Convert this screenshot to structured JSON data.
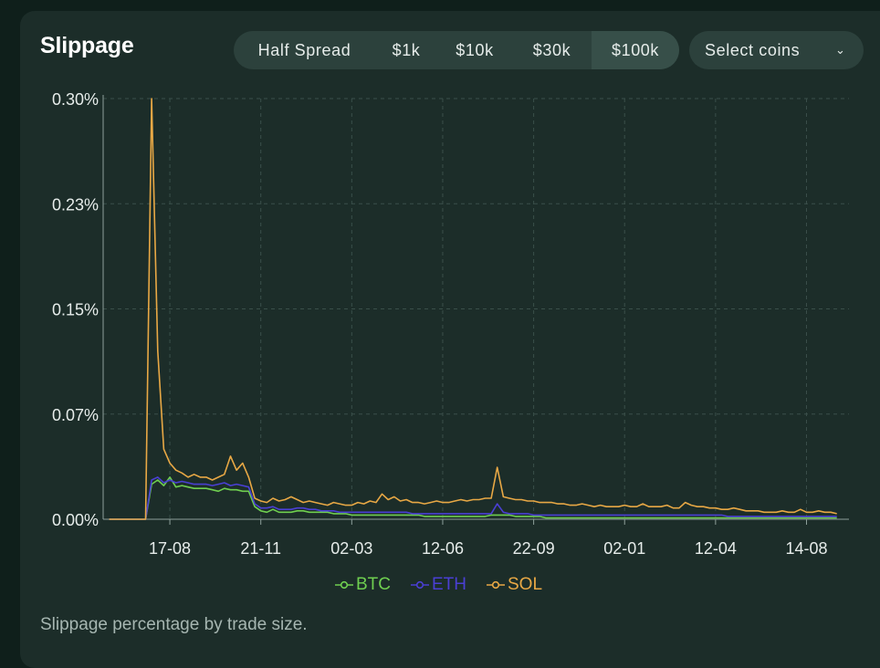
{
  "title": "Slippage",
  "tabs": [
    {
      "label": "Half Spread",
      "active": false
    },
    {
      "label": "$1k",
      "active": false
    },
    {
      "label": "$10k",
      "active": false
    },
    {
      "label": "$30k",
      "active": false
    },
    {
      "label": "$100k",
      "active": true
    }
  ],
  "coin_select": {
    "label": "Select coins",
    "icon": "chevron-down-icon"
  },
  "caption": "Slippage percentage by trade size.",
  "colors": {
    "background": "#1c2d29",
    "grid": "#3a4f4a",
    "axis": "#8ea09b",
    "BTC": "#6fcf50",
    "ETH": "#4a3fd4",
    "SOL": "#e8a845"
  },
  "chart_data": {
    "type": "line",
    "title": "",
    "xlabel": "",
    "ylabel": "",
    "grid": true,
    "legend_position": "bottom",
    "y_tick_labels": [
      "0.00%",
      "0.07%",
      "0.15%",
      "0.23%",
      "0.30%"
    ],
    "y_tick_values": [
      0,
      0.075,
      0.15,
      0.225,
      0.3
    ],
    "ylim": [
      0,
      0.3
    ],
    "x_tick_labels": [
      "17-08",
      "21-11",
      "02-03",
      "12-06",
      "22-09",
      "02-01",
      "12-04",
      "14-08"
    ],
    "x_tick_index": [
      10,
      25,
      40,
      55,
      70,
      85,
      100,
      115
    ],
    "x_range": [
      -1,
      122
    ],
    "series": [
      {
        "name": "BTC",
        "values": [
          0,
          0,
          0,
          0,
          0,
          0,
          0,
          0.025,
          0.028,
          0.024,
          0.03,
          0.023,
          0.024,
          0.023,
          0.022,
          0.022,
          0.022,
          0.021,
          0.02,
          0.022,
          0.021,
          0.021,
          0.02,
          0.02,
          0.009,
          0.006,
          0.005,
          0.007,
          0.005,
          0.005,
          0.005,
          0.006,
          0.006,
          0.005,
          0.005,
          0.005,
          0.005,
          0.004,
          0.004,
          0.004,
          0.003,
          0.003,
          0.003,
          0.003,
          0.003,
          0.003,
          0.003,
          0.003,
          0.003,
          0.003,
          0.003,
          0.003,
          0.002,
          0.002,
          0.002,
          0.002,
          0.002,
          0.002,
          0.002,
          0.002,
          0.002,
          0.002,
          0.002,
          0.003,
          0.003,
          0.003,
          0.003,
          0.002,
          0.002,
          0.002,
          0.002,
          0.002,
          0.001,
          0.001,
          0.001,
          0.001,
          0.001,
          0.001,
          0.001,
          0.001,
          0.001,
          0.001,
          0.001,
          0.001,
          0.001,
          0.001,
          0.001,
          0.001,
          0.001,
          0.001,
          0.001,
          0.001,
          0.001,
          0.001,
          0.001,
          0.001,
          0.001,
          0.001,
          0.001,
          0.001,
          0.001,
          0.001,
          0.001,
          0.001,
          0.001,
          0.001,
          0.001,
          0.001,
          0.001,
          0.001,
          0.001,
          0.001,
          0.001,
          0.001,
          0.001,
          0.001,
          0.001,
          0.001,
          0.001,
          0.001,
          0.001
        ]
      },
      {
        "name": "ETH",
        "values": [
          0,
          0,
          0,
          0,
          0,
          0,
          0,
          0.028,
          0.03,
          0.026,
          0.028,
          0.026,
          0.027,
          0.026,
          0.025,
          0.025,
          0.025,
          0.024,
          0.025,
          0.026,
          0.024,
          0.025,
          0.024,
          0.023,
          0.011,
          0.008,
          0.008,
          0.009,
          0.007,
          0.007,
          0.007,
          0.008,
          0.008,
          0.007,
          0.007,
          0.006,
          0.006,
          0.006,
          0.005,
          0.005,
          0.005,
          0.005,
          0.005,
          0.005,
          0.005,
          0.005,
          0.005,
          0.005,
          0.005,
          0.005,
          0.004,
          0.004,
          0.004,
          0.004,
          0.004,
          0.004,
          0.004,
          0.004,
          0.004,
          0.004,
          0.004,
          0.004,
          0.004,
          0.004,
          0.011,
          0.005,
          0.004,
          0.004,
          0.004,
          0.004,
          0.003,
          0.003,
          0.003,
          0.003,
          0.003,
          0.003,
          0.003,
          0.003,
          0.003,
          0.003,
          0.003,
          0.003,
          0.003,
          0.003,
          0.003,
          0.003,
          0.003,
          0.003,
          0.003,
          0.003,
          0.003,
          0.003,
          0.003,
          0.003,
          0.003,
          0.003,
          0.003,
          0.003,
          0.003,
          0.003,
          0.003,
          0.003,
          0.002,
          0.002,
          0.002,
          0.002,
          0.002,
          0.002,
          0.002,
          0.002,
          0.002,
          0.002,
          0.002,
          0.002,
          0.002,
          0.002,
          0.002,
          0.002,
          0.002,
          0.002,
          0.002
        ]
      },
      {
        "name": "SOL",
        "values": [
          0,
          0,
          0,
          0,
          0,
          0,
          0,
          0.3,
          0.12,
          0.05,
          0.04,
          0.035,
          0.033,
          0.03,
          0.032,
          0.03,
          0.03,
          0.028,
          0.03,
          0.032,
          0.045,
          0.035,
          0.04,
          0.03,
          0.015,
          0.013,
          0.012,
          0.015,
          0.013,
          0.014,
          0.016,
          0.014,
          0.012,
          0.013,
          0.012,
          0.011,
          0.01,
          0.012,
          0.011,
          0.01,
          0.01,
          0.012,
          0.011,
          0.013,
          0.012,
          0.018,
          0.014,
          0.016,
          0.013,
          0.014,
          0.012,
          0.012,
          0.011,
          0.012,
          0.013,
          0.012,
          0.012,
          0.013,
          0.014,
          0.013,
          0.014,
          0.014,
          0.015,
          0.015,
          0.037,
          0.016,
          0.015,
          0.014,
          0.014,
          0.013,
          0.013,
          0.012,
          0.012,
          0.012,
          0.011,
          0.011,
          0.01,
          0.01,
          0.011,
          0.01,
          0.009,
          0.01,
          0.009,
          0.009,
          0.009,
          0.01,
          0.009,
          0.009,
          0.011,
          0.009,
          0.009,
          0.009,
          0.01,
          0.008,
          0.008,
          0.012,
          0.01,
          0.009,
          0.009,
          0.008,
          0.008,
          0.007,
          0.007,
          0.008,
          0.007,
          0.006,
          0.006,
          0.006,
          0.005,
          0.005,
          0.005,
          0.006,
          0.005,
          0.005,
          0.007,
          0.005,
          0.005,
          0.006,
          0.005,
          0.005,
          0.004
        ]
      }
    ]
  }
}
